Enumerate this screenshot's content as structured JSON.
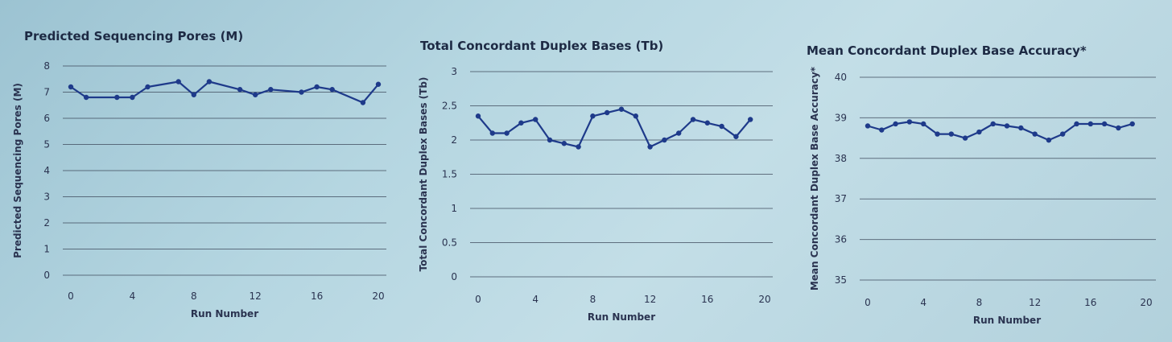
{
  "chart_data": [
    {
      "type": "line",
      "title": "Predicted Sequencing Pores (M)",
      "xlabel": "Run Number",
      "ylabel": "Predicted Sequencing Pores (M)",
      "xticks": [
        0,
        4,
        8,
        12,
        16,
        20
      ],
      "yticks": [
        0,
        1,
        2,
        3,
        4,
        5,
        6,
        7,
        8
      ],
      "ytick_labels": [
        "0",
        "1",
        "2",
        "3",
        "4",
        "5",
        "6",
        "7",
        "8"
      ],
      "xlim": [
        0,
        20
      ],
      "ylim": [
        0,
        8
      ],
      "grid": true,
      "series": [
        {
          "values": [
            {
              "x": 0,
              "y": 7.2
            },
            {
              "x": 1,
              "y": 6.8
            },
            {
              "x": 3,
              "y": 6.8
            },
            {
              "x": 4,
              "y": 6.8
            },
            {
              "x": 5,
              "y": 7.2
            },
            {
              "x": 7,
              "y": 7.4
            },
            {
              "x": 8,
              "y": 6.9
            },
            {
              "x": 9,
              "y": 7.4
            },
            {
              "x": 11,
              "y": 7.1
            },
            {
              "x": 12,
              "y": 6.9
            },
            {
              "x": 13,
              "y": 7.1
            },
            {
              "x": 15,
              "y": 7.0
            },
            {
              "x": 16,
              "y": 7.2
            },
            {
              "x": 17,
              "y": 7.1
            },
            {
              "x": 19,
              "y": 6.6
            },
            {
              "x": 20,
              "y": 7.3
            }
          ]
        }
      ]
    },
    {
      "type": "line",
      "title": "Total Concordant Duplex Bases (Tb)",
      "xlabel": "Run Number",
      "ylabel": "Total Concordant Duplex Bases (Tb)",
      "xticks": [
        0,
        4,
        8,
        12,
        16,
        20
      ],
      "yticks": [
        0,
        0.5,
        1,
        1.5,
        2,
        2.5,
        3
      ],
      "ytick_labels": [
        "0",
        "0.5",
        "1",
        "1.5",
        "2",
        "2.5",
        "3"
      ],
      "xlim": [
        0,
        20
      ],
      "ylim": [
        0,
        3
      ],
      "grid": true,
      "series": [
        {
          "values": [
            {
              "x": 0,
              "y": 2.35
            },
            {
              "x": 1,
              "y": 2.1
            },
            {
              "x": 2,
              "y": 2.1
            },
            {
              "x": 3,
              "y": 2.25
            },
            {
              "x": 4,
              "y": 2.3
            },
            {
              "x": 5,
              "y": 2.0
            },
            {
              "x": 6,
              "y": 1.95
            },
            {
              "x": 7,
              "y": 1.9
            },
            {
              "x": 8,
              "y": 2.35
            },
            {
              "x": 9,
              "y": 2.4
            },
            {
              "x": 10,
              "y": 2.45
            },
            {
              "x": 11,
              "y": 2.35
            },
            {
              "x": 12,
              "y": 1.9
            },
            {
              "x": 13,
              "y": 2.0
            },
            {
              "x": 14,
              "y": 2.1
            },
            {
              "x": 15,
              "y": 2.3
            },
            {
              "x": 16,
              "y": 2.25
            },
            {
              "x": 17,
              "y": 2.2
            },
            {
              "x": 18,
              "y": 2.05
            },
            {
              "x": 19,
              "y": 2.3
            }
          ]
        }
      ]
    },
    {
      "type": "line",
      "title": "Mean Concordant Duplex Base Accuracy*",
      "xlabel": "Run Number",
      "ylabel": "Mean Concordant Duplex Base Accuracy*",
      "xticks": [
        0,
        4,
        8,
        12,
        16,
        20
      ],
      "yticks": [
        35,
        36,
        37,
        38,
        39,
        40
      ],
      "ytick_labels": [
        "35",
        "36",
        "37",
        "38",
        "39",
        "40"
      ],
      "xlim": [
        0,
        20
      ],
      "ylim": [
        35,
        40
      ],
      "grid": true,
      "series": [
        {
          "values": [
            {
              "x": 0,
              "y": 38.8
            },
            {
              "x": 1,
              "y": 38.7
            },
            {
              "x": 2,
              "y": 38.85
            },
            {
              "x": 3,
              "y": 38.9
            },
            {
              "x": 4,
              "y": 38.85
            },
            {
              "x": 5,
              "y": 38.6
            },
            {
              "x": 6,
              "y": 38.6
            },
            {
              "x": 7,
              "y": 38.5
            },
            {
              "x": 8,
              "y": 38.65
            },
            {
              "x": 9,
              "y": 38.85
            },
            {
              "x": 10,
              "y": 38.8
            },
            {
              "x": 11,
              "y": 38.75
            },
            {
              "x": 12,
              "y": 38.6
            },
            {
              "x": 13,
              "y": 38.45
            },
            {
              "x": 14,
              "y": 38.6
            },
            {
              "x": 15,
              "y": 38.85
            },
            {
              "x": 16,
              "y": 38.85
            },
            {
              "x": 17,
              "y": 38.85
            },
            {
              "x": 18,
              "y": 38.75
            },
            {
              "x": 19,
              "y": 38.85
            }
          ]
        }
      ]
    }
  ]
}
